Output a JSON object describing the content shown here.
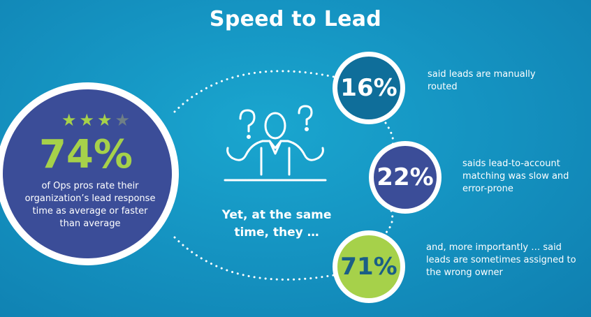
{
  "title": "Speed to Lead",
  "main_stat": {
    "stars_filled": 3,
    "stars_total": 4,
    "value": "74%",
    "description": "of Ops pros rate their organization’s lead response time as average or faster than average"
  },
  "transition_text": "Yet, at the same time, they …",
  "stats": [
    {
      "value": "16%",
      "text": "said leads are manually routed"
    },
    {
      "value": "22%",
      "text": "saids lead-to-account matching was slow and error-prone"
    },
    {
      "value": "71%",
      "text": "and, more importantly … said leads are sometimes assigned to the wrong owner"
    }
  ],
  "colors": {
    "background": "#1594c2",
    "navy": "#3b4d98",
    "teal_dark": "#0f6e9a",
    "lime": "#a6d14a",
    "star_off": "#6f7f86",
    "white": "#ffffff"
  },
  "icons": {
    "person": "confused-person-icon",
    "star": "star-icon"
  }
}
